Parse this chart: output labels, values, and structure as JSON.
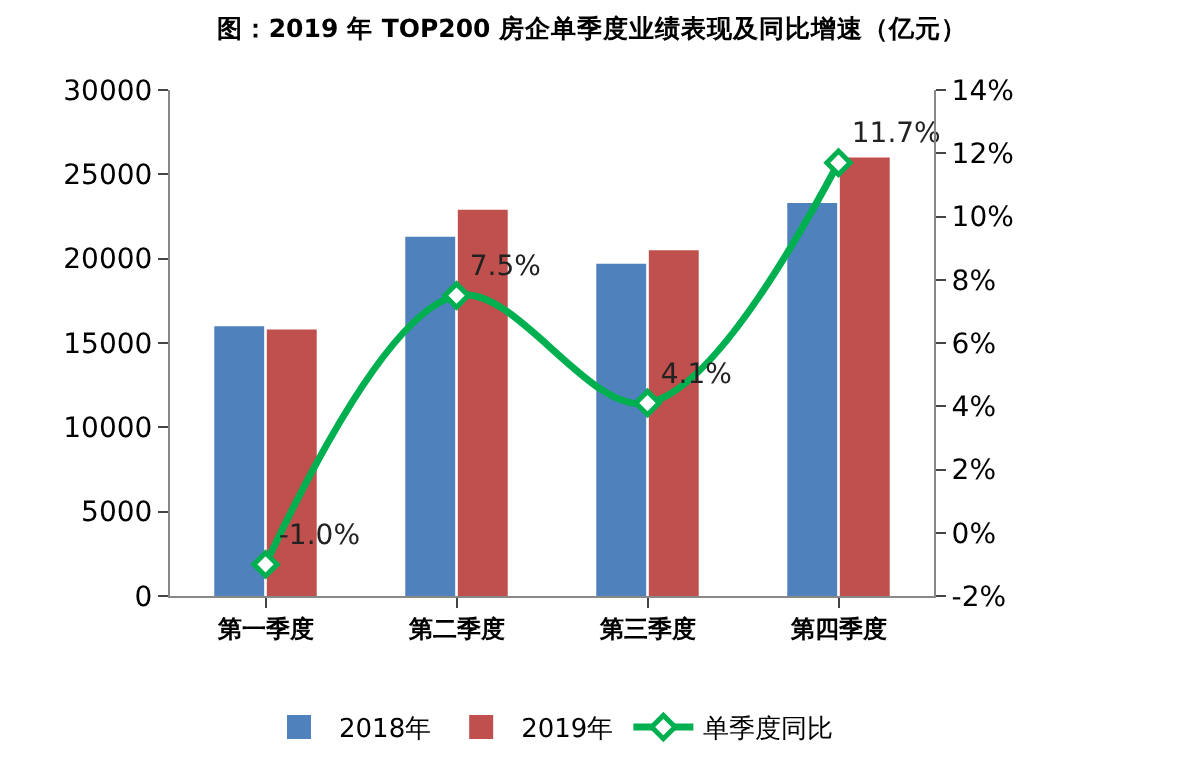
{
  "chart_data": {
    "type": "bar",
    "title": "图：2019 年 TOP200 房企单季度业绩表现及同比增速（亿元）",
    "categories": [
      "第一季度",
      "第二季度",
      "第三季度",
      "第四季度"
    ],
    "series": [
      {
        "name": "2018年",
        "color": "#4f81bd",
        "values": [
          16000,
          21300,
          19700,
          23300
        ]
      },
      {
        "name": "2019年",
        "color": "#c0504d",
        "values": [
          15800,
          22900,
          20500,
          26000
        ]
      },
      {
        "name": "单季度同比",
        "type": "line",
        "axis": "y2",
        "color": "#00b050",
        "marker": "diamond",
        "values": [
          -1.0,
          7.5,
          4.1,
          11.7
        ],
        "value_labels": [
          "-1.0%",
          "7.5%",
          "4.1%",
          "11.7%"
        ]
      }
    ],
    "ylim": [
      0,
      30000
    ],
    "yticks": [
      0,
      5000,
      10000,
      15000,
      20000,
      25000,
      30000
    ],
    "y2lim": [
      -2,
      14
    ],
    "y2ticks": [
      {
        "value": -2,
        "label": "-2%"
      },
      {
        "value": 0,
        "label": "0%"
      },
      {
        "value": 2,
        "label": "2%"
      },
      {
        "value": 4,
        "label": "4%"
      },
      {
        "value": 6,
        "label": "6%"
      },
      {
        "value": 8,
        "label": "8%"
      },
      {
        "value": 10,
        "label": "10%"
      },
      {
        "value": 12,
        "label": "12%"
      },
      {
        "value": 14,
        "label": "14%"
      }
    ],
    "grid": false,
    "legend": "bottom"
  }
}
